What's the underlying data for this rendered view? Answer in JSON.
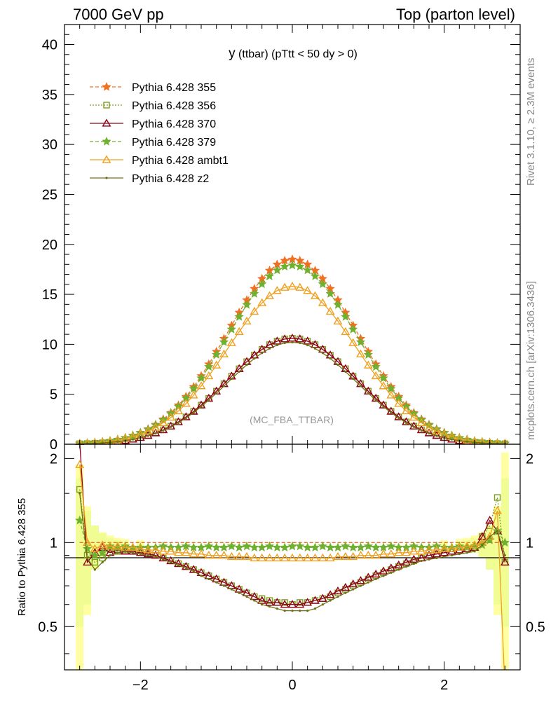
{
  "header": {
    "left": "7000 GeV pp",
    "right": "Top (parton level)"
  },
  "side_labels": {
    "rivet": "Rivet 3.1.10, ≥ 2.3M events",
    "mcplots": "mcplots.cern.ch [arXiv:1306.3436]"
  },
  "chart_data": {
    "type": "line",
    "title_main": "y",
    "title_rest": " (ttbar) (pTtt < 50 dy > 0)",
    "watermark": "(MC_FBA_TTBAR)",
    "xlim": [
      -3,
      3
    ],
    "x_ticks": [
      -2,
      0,
      2
    ],
    "x_tick_labels": [
      "−2",
      "0",
      "2"
    ],
    "upper": {
      "ylim": [
        0,
        42
      ],
      "y_ticks": [
        0,
        5,
        10,
        15,
        20,
        25,
        30,
        35,
        40
      ],
      "y_tick_labels": [
        "0",
        "5",
        "10",
        "15",
        "20",
        "25",
        "30",
        "35",
        "40"
      ]
    },
    "lower": {
      "ylabel": "Ratio to Pythia 6.428 355",
      "ylim": [
        0.35,
        2.25
      ],
      "y_ticks": [
        0.5,
        1,
        2
      ],
      "y_tick_labels": [
        "0.5",
        "1",
        "2"
      ]
    },
    "x": [
      -2.8,
      -2.7,
      -2.6,
      -2.5,
      -2.4,
      -2.3,
      -2.2,
      -2.1,
      -2.0,
      -1.9,
      -1.8,
      -1.7,
      -1.6,
      -1.5,
      -1.4,
      -1.3,
      -1.2,
      -1.1,
      -1.0,
      -0.9,
      -0.8,
      -0.7,
      -0.6,
      -0.5,
      -0.4,
      -0.3,
      -0.2,
      -0.1,
      0.0,
      0.1,
      0.2,
      0.3,
      0.4,
      0.5,
      0.6,
      0.7,
      0.8,
      0.9,
      1.0,
      1.1,
      1.2,
      1.3,
      1.4,
      1.5,
      1.6,
      1.7,
      1.8,
      1.9,
      2.0,
      2.1,
      2.2,
      2.3,
      2.4,
      2.5,
      2.6,
      2.7,
      2.8
    ],
    "series": [
      {
        "name": "Pythia 6.428 355",
        "color": "#f07020",
        "marker": "star",
        "dash": "5,3",
        "peak": 18.5,
        "width": 0.85,
        "ratio": [
          1.0,
          1.0,
          1.0,
          1.0,
          1.0,
          1.0,
          1.0,
          1.0,
          1.0,
          1.0,
          1.0,
          1.0,
          1.0,
          1.0,
          1.0,
          1.0,
          1.0,
          1.0,
          1.0,
          1.0,
          1.0,
          1.0,
          1.0,
          1.0,
          1.0,
          1.0,
          1.0,
          1.0,
          1.0,
          1.0,
          1.0,
          1.0,
          1.0,
          1.0,
          1.0,
          1.0,
          1.0,
          1.0,
          1.0,
          1.0,
          1.0,
          1.0,
          1.0,
          1.0,
          1.0,
          1.0,
          1.0,
          1.0,
          1.0,
          1.0,
          1.0,
          1.0,
          1.0,
          1.0,
          1.0,
          1.0,
          1.0
        ]
      },
      {
        "name": "Pythia 6.428 356",
        "color": "#80a020",
        "marker": "square",
        "dash": "2,2",
        "peak": 10.6,
        "width": 0.85,
        "ratio": [
          1.55,
          0.9,
          0.85,
          0.88,
          0.95,
          0.93,
          0.94,
          0.93,
          0.92,
          0.91,
          0.9,
          0.88,
          0.86,
          0.84,
          0.82,
          0.8,
          0.78,
          0.76,
          0.74,
          0.72,
          0.7,
          0.68,
          0.66,
          0.64,
          0.63,
          0.62,
          0.61,
          0.61,
          0.6,
          0.61,
          0.61,
          0.62,
          0.63,
          0.64,
          0.66,
          0.68,
          0.7,
          0.72,
          0.74,
          0.76,
          0.78,
          0.8,
          0.82,
          0.84,
          0.86,
          0.88,
          0.9,
          0.91,
          0.92,
          0.93,
          0.94,
          0.95,
          0.96,
          1.05,
          1.15,
          1.45,
          0.85
        ]
      },
      {
        "name": "Pythia 6.428 370",
        "color": "#900018",
        "marker": "triangle",
        "dash": "",
        "peak": 10.6,
        "width": 0.85,
        "ratio": [
          2.3,
          0.85,
          0.92,
          0.96,
          0.92,
          0.94,
          0.93,
          0.93,
          0.92,
          0.91,
          0.9,
          0.88,
          0.86,
          0.84,
          0.82,
          0.8,
          0.78,
          0.76,
          0.74,
          0.72,
          0.7,
          0.68,
          0.66,
          0.64,
          0.62,
          0.61,
          0.61,
          0.6,
          0.6,
          0.6,
          0.61,
          0.62,
          0.63,
          0.65,
          0.67,
          0.69,
          0.71,
          0.73,
          0.75,
          0.77,
          0.79,
          0.81,
          0.83,
          0.85,
          0.87,
          0.88,
          0.9,
          0.91,
          0.92,
          0.93,
          0.94,
          0.95,
          0.96,
          1.05,
          1.2,
          1.1,
          0.85
        ]
      },
      {
        "name": "Pythia 6.428 379",
        "color": "#70b030",
        "marker": "star",
        "dash": "5,3",
        "peak": 17.9,
        "width": 0.85,
        "ratio": [
          1.2,
          0.95,
          0.9,
          0.92,
          0.97,
          0.96,
          0.97,
          0.96,
          0.96,
          0.96,
          0.96,
          0.97,
          0.96,
          0.96,
          0.97,
          0.96,
          0.96,
          0.97,
          0.96,
          0.96,
          0.97,
          0.96,
          0.97,
          0.96,
          0.96,
          0.97,
          0.96,
          0.96,
          0.97,
          0.97,
          0.96,
          0.96,
          0.97,
          0.96,
          0.96,
          0.97,
          0.96,
          0.96,
          0.97,
          0.96,
          0.96,
          0.97,
          0.96,
          0.96,
          0.97,
          0.96,
          0.96,
          0.97,
          0.96,
          0.96,
          0.97,
          0.96,
          0.97,
          0.98,
          1.02,
          1.1,
          1.0
        ]
      },
      {
        "name": "Pythia 6.428 ambt1",
        "color": "#f0a020",
        "marker": "triangle",
        "dash": "",
        "peak": 15.8,
        "width": 0.85,
        "ratio": [
          1.9,
          1.0,
          0.95,
          0.98,
          0.97,
          0.97,
          0.96,
          0.96,
          0.95,
          0.94,
          0.94,
          0.93,
          0.93,
          0.92,
          0.92,
          0.91,
          0.91,
          0.9,
          0.9,
          0.9,
          0.89,
          0.89,
          0.89,
          0.88,
          0.88,
          0.88,
          0.88,
          0.88,
          0.88,
          0.88,
          0.88,
          0.88,
          0.88,
          0.88,
          0.89,
          0.89,
          0.89,
          0.9,
          0.9,
          0.9,
          0.91,
          0.91,
          0.92,
          0.92,
          0.93,
          0.93,
          0.94,
          0.94,
          0.95,
          0.95,
          0.96,
          0.97,
          0.98,
          1.0,
          1.05,
          1.3,
          0.3
        ]
      },
      {
        "name": "Pythia 6.428 z2",
        "color": "#707018",
        "marker": "dot",
        "dash": "",
        "peak": 10.2,
        "width": 0.85,
        "ratio": [
          1.5,
          0.88,
          0.8,
          0.85,
          0.9,
          0.92,
          0.93,
          0.92,
          0.91,
          0.9,
          0.89,
          0.87,
          0.85,
          0.83,
          0.81,
          0.79,
          0.76,
          0.74,
          0.72,
          0.7,
          0.68,
          0.66,
          0.64,
          0.62,
          0.6,
          0.59,
          0.58,
          0.57,
          0.57,
          0.57,
          0.57,
          0.58,
          0.6,
          0.62,
          0.64,
          0.66,
          0.68,
          0.7,
          0.72,
          0.74,
          0.76,
          0.78,
          0.8,
          0.82,
          0.84,
          0.86,
          0.87,
          0.88,
          0.89,
          0.9,
          0.91,
          0.92,
          0.93,
          0.98,
          1.05,
          1.1,
          0.9
        ]
      }
    ],
    "ratio_bands": [
      {
        "name": "Pythia 6.428 355",
        "color": "#90f090",
        "x": [
          -2.8,
          -2.7,
          -2.6,
          -2.5,
          -2.4,
          -2.3,
          2.3,
          2.4,
          2.5,
          2.6,
          2.7,
          2.8
        ],
        "lo": [
          0.5,
          0.6,
          0.8,
          0.88,
          0.93,
          0.96,
          0.96,
          0.93,
          0.88,
          0.8,
          0.6,
          0.5
        ],
        "hi": [
          1.7,
          1.3,
          1.15,
          1.08,
          1.04,
          1.02,
          1.02,
          1.04,
          1.08,
          1.15,
          1.3,
          1.7
        ]
      },
      {
        "name": "Pythia 6.428 ambt1",
        "color": "#ffff90",
        "x": [
          -2.8,
          -2.7,
          -2.6,
          -2.5,
          -2.4,
          -2.3,
          -2.2,
          -2.0,
          2.0,
          2.2,
          2.3,
          2.4,
          2.5,
          2.6,
          2.7,
          2.8
        ],
        "lo": [
          0.35,
          0.55,
          0.8,
          0.88,
          0.92,
          0.95,
          0.96,
          0.97,
          0.97,
          0.96,
          0.95,
          0.92,
          0.88,
          0.8,
          0.55,
          0.35
        ],
        "hi": [
          1.9,
          1.35,
          1.15,
          1.09,
          1.06,
          1.04,
          1.03,
          1.02,
          1.02,
          1.03,
          1.04,
          1.06,
          1.09,
          1.15,
          1.35,
          2.1
        ]
      }
    ]
  }
}
